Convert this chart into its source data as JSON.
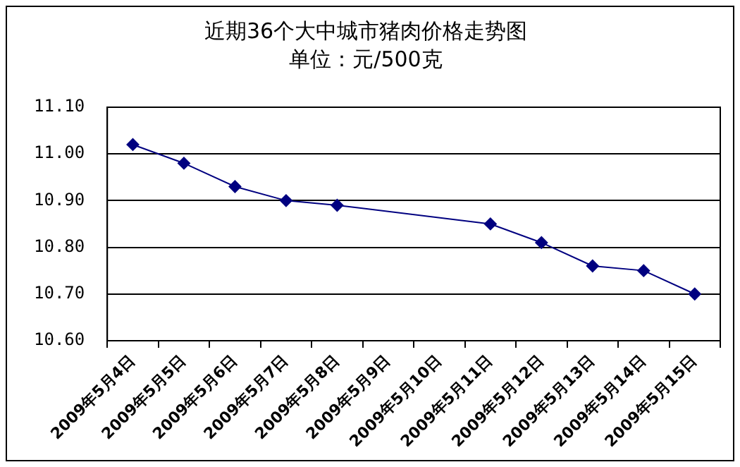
{
  "chart_data": {
    "type": "line",
    "title": "近期36个大中城市猪肉价格走势图",
    "subtitle": "单位：元/500克",
    "categories": [
      "2009年5月4日",
      "2009年5月5日",
      "2009年5月6日",
      "2009年5月7日",
      "2009年5月8日",
      "2009年5月9日",
      "2009年5月10日",
      "2009年5月11日",
      "2009年5月12日",
      "2009年5月13日",
      "2009年5月14日",
      "2009年5月15日"
    ],
    "series": [
      {
        "color": "#000080",
        "values": [
          11.02,
          10.98,
          10.93,
          10.9,
          10.89,
          null,
          null,
          10.85,
          10.81,
          10.76,
          10.75,
          10.7
        ]
      }
    ],
    "ylim": [
      10.6,
      11.1
    ],
    "yticks": [
      {
        "value": 10.6,
        "label": "10.60"
      },
      {
        "value": 10.7,
        "label": "10.70"
      },
      {
        "value": 10.8,
        "label": "10.80"
      },
      {
        "value": 10.9,
        "label": "10.90"
      },
      {
        "value": 11.0,
        "label": "11.00"
      },
      {
        "value": 11.1,
        "label": "11.10"
      }
    ],
    "grid": "y",
    "legend": false,
    "marker": "diamond",
    "line_style": "solid"
  }
}
